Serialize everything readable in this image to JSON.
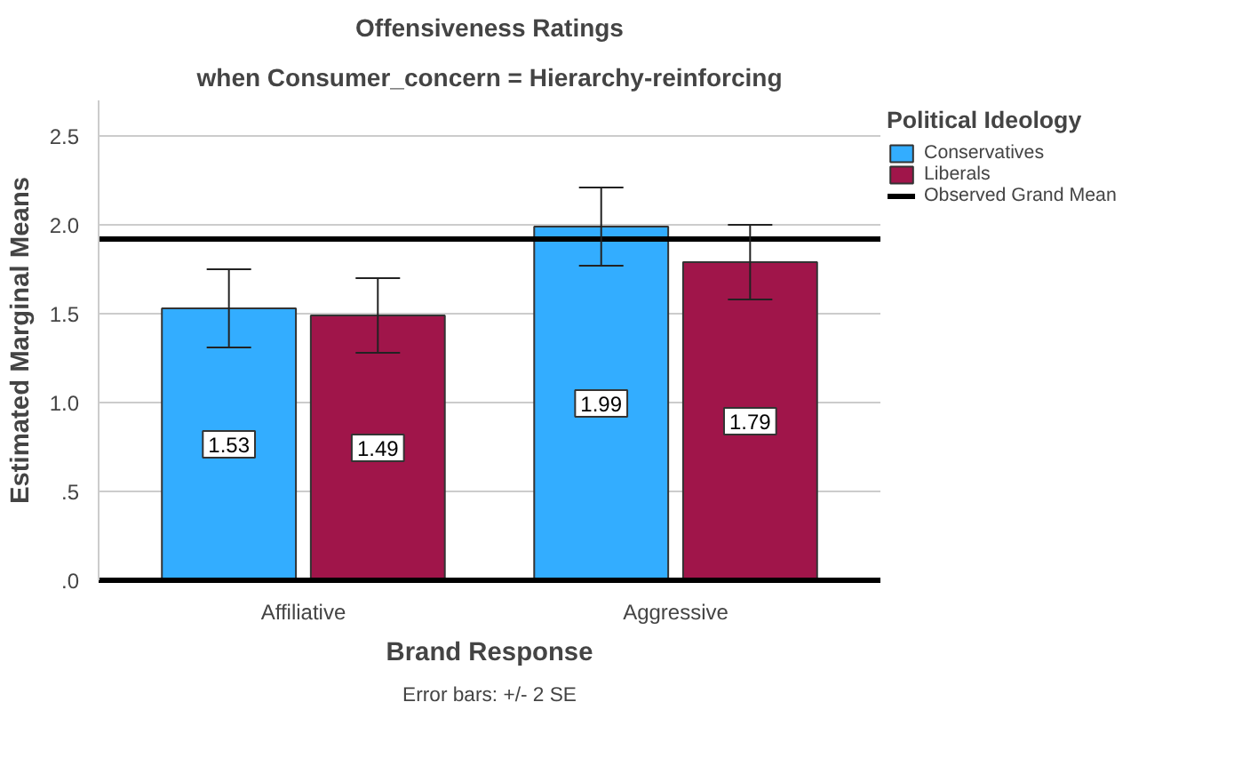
{
  "chart_data": {
    "type": "bar",
    "title": "Offensiveness Ratings",
    "subtitle": "when Consumer_concern = Hierarchy-reinforcing",
    "xlabel": "Brand Response",
    "ylabel": "Estimated Marginal Means",
    "legend_title": "Political Ideology",
    "categories": [
      "Affiliative",
      "Aggressive"
    ],
    "series": [
      {
        "name": "Conservatives",
        "color": "#33adff",
        "values": [
          1.53,
          1.99
        ],
        "errors": [
          0.22,
          0.22
        ]
      },
      {
        "name": "Liberals",
        "color": "#a0154a",
        "values": [
          1.49,
          1.79
        ],
        "errors": [
          0.21,
          0.21
        ]
      }
    ],
    "ylim": [
      0,
      2.7
    ],
    "yticks": [
      {
        "value": 0,
        "label": ".0"
      },
      {
        "value": 0.5,
        "label": ".5"
      },
      {
        "value": 1,
        "label": "1.0"
      },
      {
        "value": 1.5,
        "label": "1.5"
      },
      {
        "value": 2,
        "label": "2.0"
      },
      {
        "value": 2.5,
        "label": "2.5"
      }
    ],
    "ref_lines": [
      {
        "axis": "y",
        "value": 1.92,
        "label": "Observed Grand Mean",
        "color": "#000000"
      }
    ],
    "data_labels": true,
    "grid": "y",
    "legend": "right",
    "annotations": [
      "Error bars: +/- 2 SE"
    ]
  }
}
